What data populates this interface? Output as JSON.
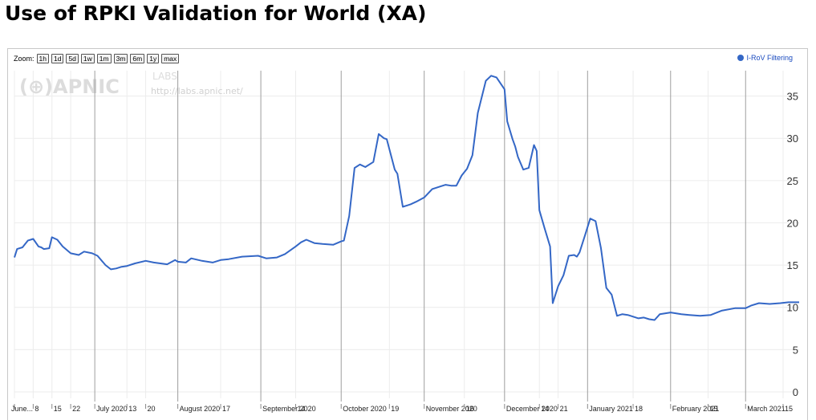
{
  "page": {
    "title": "Use of RPKI Validation for World (XA)"
  },
  "zoom": {
    "label": "Zoom:",
    "buttons": [
      "1h",
      "1d",
      "5d",
      "1w",
      "1m",
      "3m",
      "6m",
      "1y",
      "max"
    ]
  },
  "watermark": {
    "logo": "(⊕)APNIC",
    "labs": "LABS",
    "url": "http://labs.apnic.net/"
  },
  "colors": {
    "series": "#3467c6",
    "legend_text": "#1a4bbf",
    "grid": "#ececec",
    "month_line": "#9e9e9e"
  },
  "chart_data": {
    "type": "line",
    "title": "Use of RPKI Validation for World (XA)",
    "xlabel": "",
    "ylabel": "",
    "x_range": [
      "2020-06-01",
      "2021-03-21"
    ],
    "ylim": [
      0,
      38
    ],
    "y_ticks": [
      0,
      5,
      10,
      15,
      20,
      25,
      30,
      35
    ],
    "grid": true,
    "legend": "top-right",
    "x_tick_labels": [
      {
        "date": "2020-06-01",
        "label": "June..."
      },
      {
        "date": "2020-06-08",
        "label": "8"
      },
      {
        "date": "2020-06-15",
        "label": "15"
      },
      {
        "date": "2020-06-22",
        "label": "22"
      },
      {
        "date": "2020-07-01",
        "label": "July 2020"
      },
      {
        "date": "2020-07-13",
        "label": "13"
      },
      {
        "date": "2020-07-20",
        "label": "20"
      },
      {
        "date": "2020-08-01",
        "label": "August 2020"
      },
      {
        "date": "2020-08-17",
        "label": "17"
      },
      {
        "date": "2020-09-01",
        "label": "September 2020"
      },
      {
        "date": "2020-09-14",
        "label": "14"
      },
      {
        "date": "2020-10-01",
        "label": "October 2020"
      },
      {
        "date": "2020-10-19",
        "label": "19"
      },
      {
        "date": "2020-11-01",
        "label": "November 2020"
      },
      {
        "date": "2020-11-16",
        "label": "16"
      },
      {
        "date": "2020-12-01",
        "label": "December 2020"
      },
      {
        "date": "2020-12-14",
        "label": "14"
      },
      {
        "date": "2020-12-21",
        "label": "21"
      },
      {
        "date": "2021-01-01",
        "label": "January 2021"
      },
      {
        "date": "2021-01-18",
        "label": "18"
      },
      {
        "date": "2021-02-01",
        "label": "February 2021"
      },
      {
        "date": "2021-02-15",
        "label": "15"
      },
      {
        "date": "2021-03-01",
        "label": "March 2021"
      },
      {
        "date": "2021-03-15",
        "label": "15"
      }
    ],
    "series": [
      {
        "name": "I-RoV Filtering",
        "x": [
          "2020-06-01",
          "2020-06-02",
          "2020-06-04",
          "2020-06-06",
          "2020-06-08",
          "2020-06-10",
          "2020-06-11",
          "2020-06-12",
          "2020-06-14",
          "2020-06-15",
          "2020-06-17",
          "2020-06-19",
          "2020-06-22",
          "2020-06-25",
          "2020-06-27",
          "2020-06-30",
          "2020-07-02",
          "2020-07-05",
          "2020-07-07",
          "2020-07-09",
          "2020-07-11",
          "2020-07-13",
          "2020-07-16",
          "2020-07-20",
          "2020-07-23",
          "2020-07-28",
          "2020-07-31",
          "2020-08-01",
          "2020-08-04",
          "2020-08-06",
          "2020-08-10",
          "2020-08-14",
          "2020-08-17",
          "2020-08-20",
          "2020-08-25",
          "2020-08-31",
          "2020-09-03",
          "2020-09-07",
          "2020-09-10",
          "2020-09-14",
          "2020-09-16",
          "2020-09-18",
          "2020-09-21",
          "2020-09-24",
          "2020-09-28",
          "2020-10-01",
          "2020-10-02",
          "2020-10-04",
          "2020-10-06",
          "2020-10-08",
          "2020-10-10",
          "2020-10-13",
          "2020-10-15",
          "2020-10-17",
          "2020-10-18",
          "2020-10-21",
          "2020-10-22",
          "2020-10-24",
          "2020-10-26",
          "2020-10-27",
          "2020-10-29",
          "2020-11-01",
          "2020-11-04",
          "2020-11-07",
          "2020-11-09",
          "2020-11-11",
          "2020-11-13",
          "2020-11-15",
          "2020-11-17",
          "2020-11-19",
          "2020-11-21",
          "2020-11-24",
          "2020-11-26",
          "2020-11-28",
          "2020-12-01",
          "2020-12-02",
          "2020-12-04",
          "2020-12-05",
          "2020-12-06",
          "2020-12-08",
          "2020-12-10",
          "2020-12-12",
          "2020-12-13",
          "2020-12-14",
          "2020-12-16",
          "2020-12-18",
          "2020-12-19",
          "2020-12-21",
          "2020-12-23",
          "2020-12-25",
          "2020-12-27",
          "2020-12-28",
          "2020-12-29",
          "2020-12-31",
          "2021-01-02",
          "2021-01-04",
          "2021-01-06",
          "2021-01-08",
          "2021-01-10",
          "2021-01-12",
          "2021-01-14",
          "2021-01-16",
          "2021-01-18",
          "2021-01-20",
          "2021-01-22",
          "2021-01-24",
          "2021-01-26",
          "2021-01-28",
          "2021-02-01",
          "2021-02-05",
          "2021-02-08",
          "2021-02-12",
          "2021-02-16",
          "2021-02-20",
          "2021-02-25",
          "2021-03-01",
          "2021-03-03",
          "2021-03-06",
          "2021-03-10",
          "2021-03-14",
          "2021-03-17",
          "2021-03-21"
        ],
        "y": [
          15.9,
          16.9,
          17.1,
          17.9,
          18.1,
          17.2,
          17.1,
          16.9,
          17.0,
          18.3,
          18.0,
          17.2,
          16.4,
          16.2,
          16.6,
          16.4,
          16.1,
          15.0,
          14.5,
          14.6,
          14.8,
          14.9,
          15.2,
          15.5,
          15.3,
          15.1,
          15.6,
          15.4,
          15.3,
          15.8,
          15.5,
          15.3,
          15.6,
          15.7,
          16.0,
          16.1,
          15.8,
          15.9,
          16.3,
          17.2,
          17.7,
          18.0,
          17.6,
          17.5,
          17.4,
          17.8,
          17.9,
          20.8,
          26.5,
          26.9,
          26.6,
          27.2,
          30.5,
          30.0,
          29.9,
          26.3,
          25.8,
          21.9,
          22.1,
          22.2,
          22.5,
          23.0,
          24.0,
          24.3,
          24.5,
          24.4,
          24.4,
          25.6,
          26.4,
          28.0,
          33.0,
          36.8,
          37.4,
          37.2,
          35.8,
          32.0,
          29.9,
          29.0,
          27.8,
          26.3,
          26.5,
          29.2,
          28.5,
          21.5,
          19.3,
          17.2,
          10.5,
          12.5,
          13.8,
          16.1,
          16.2,
          16.0,
          16.5,
          18.5,
          20.5,
          20.2,
          17.0,
          12.3,
          11.5,
          9.0,
          9.2,
          9.1,
          8.9,
          8.7,
          8.8,
          8.6,
          8.5,
          9.2,
          9.4,
          9.2,
          9.1,
          9.0,
          9.1,
          9.6,
          9.9,
          9.9,
          10.2,
          10.5,
          10.4,
          10.5,
          10.6,
          10.6
        ]
      }
    ]
  }
}
